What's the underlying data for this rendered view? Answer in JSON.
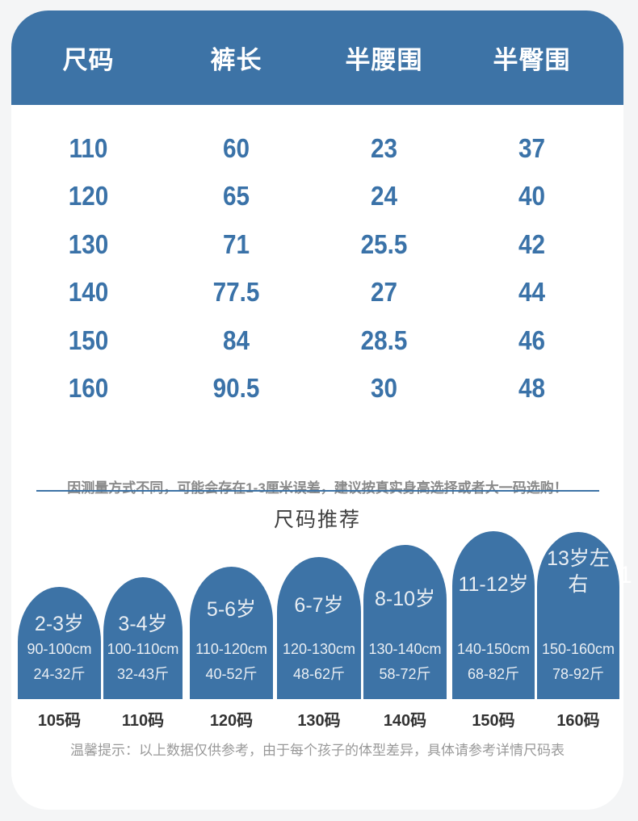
{
  "page": {
    "background": "#f4f5f6",
    "accent_blue": "#3d73a6",
    "number_blue": "#3a72a8",
    "watermark": "1"
  },
  "size_table": {
    "columns": [
      "尺码",
      "裤长",
      "半腰围",
      "半臀围"
    ],
    "rows": [
      [
        "110",
        "60",
        "23",
        "37"
      ],
      [
        "120",
        "65",
        "24",
        "40"
      ],
      [
        "130",
        "71",
        "25.5",
        "42"
      ],
      [
        "140",
        "77.5",
        "27",
        "44"
      ],
      [
        "150",
        "84",
        "28.5",
        "46"
      ],
      [
        "160",
        "90.5",
        "30",
        "48"
      ]
    ]
  },
  "note": "因测量方式不同，可能会存在1-3厘米误差，建议按真实身高选择或者大一码选购！",
  "recommend": {
    "title": "尺码推荐",
    "items": [
      {
        "age": "2-3岁",
        "height": "90-100cm",
        "weight": "24-32斤",
        "size": "105码"
      },
      {
        "age": "3-4岁",
        "height": "100-110cm",
        "weight": "32-43斤",
        "size": "110码"
      },
      {
        "age": "5-6岁",
        "height": "110-120cm",
        "weight": "40-52斤",
        "size": "120码"
      },
      {
        "age": "6-7岁",
        "height": "120-130cm",
        "weight": "48-62斤",
        "size": "130码"
      },
      {
        "age": "8-10岁",
        "height": "130-140cm",
        "weight": "58-72斤",
        "size": "140码"
      },
      {
        "age": "11-12岁",
        "height": "140-150cm",
        "weight": "68-82斤",
        "size": "150码"
      },
      {
        "age": "13岁左右",
        "height": "150-160cm",
        "weight": "78-92斤",
        "size": "160码"
      }
    ]
  },
  "tip": "温馨提示：以上数据仅供参考，由于每个孩子的体型差异，具体请参考详情尺码表"
}
